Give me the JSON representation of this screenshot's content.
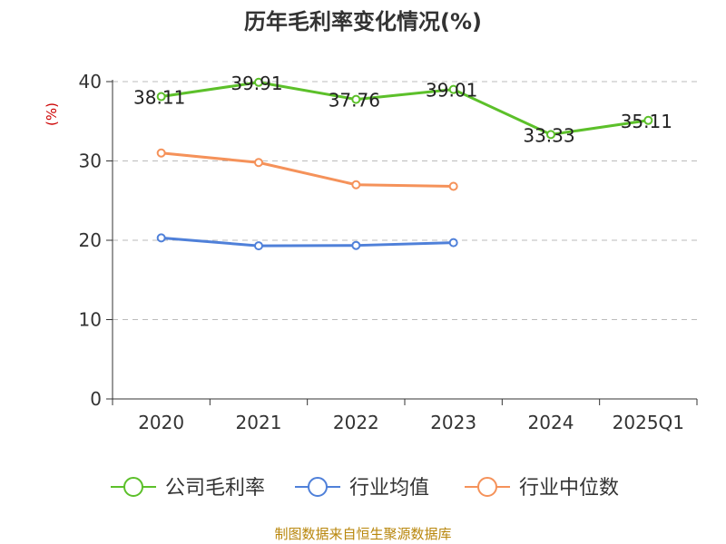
{
  "title": "历年毛利率变化情况(%)",
  "footer": "制图数据来自恒生聚源数据库",
  "colors": {
    "gross_margin": "#5cc02a",
    "industry_avg": "#4f80d9",
    "industry_median": "#f5925a",
    "axis": "#333333",
    "grid": "#bbbbbb",
    "unit": "#cc0000",
    "footer": "#b8860b"
  },
  "chart_data": {
    "type": "line",
    "categories": [
      "2020",
      "2021",
      "2022",
      "2023",
      "2024",
      "2025Q1"
    ],
    "ylabel": "(%)",
    "ylim": [
      0,
      40
    ],
    "yticks": [
      "0",
      "10",
      "20",
      "30",
      "40"
    ],
    "grid": true,
    "legend_position": "bottom",
    "series": [
      {
        "name": "公司毛利率",
        "values": [
          38.11,
          39.91,
          37.76,
          39.01,
          33.33,
          35.11
        ],
        "labels": [
          "38.11",
          "39.91",
          "37.76",
          "39.01",
          "33.33",
          "35.11"
        ]
      },
      {
        "name": "行业均值",
        "values": [
          20.3,
          19.3,
          19.35,
          19.7,
          null,
          null
        ]
      },
      {
        "name": "行业中位数",
        "values": [
          31.0,
          29.8,
          27.0,
          26.8,
          null,
          null
        ]
      }
    ]
  }
}
